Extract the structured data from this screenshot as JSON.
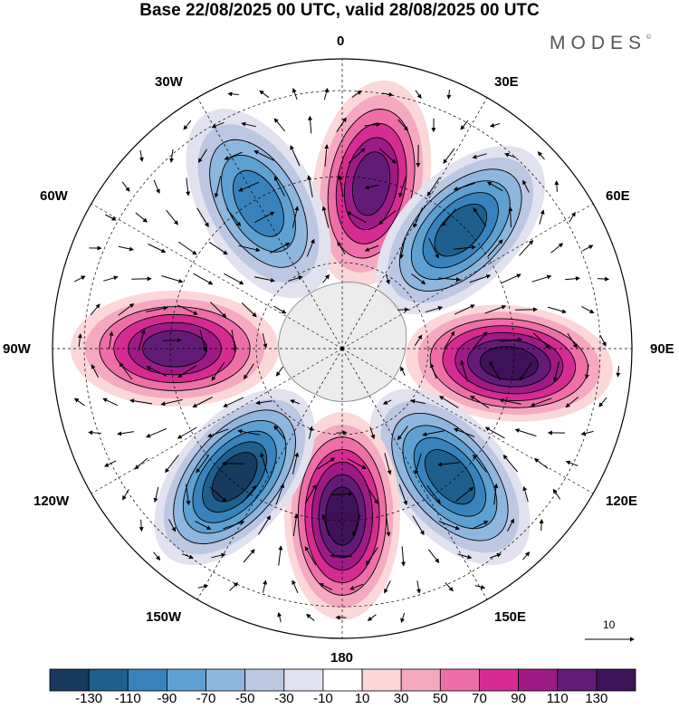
{
  "header": {
    "title": "Base 22/08/2025 00 UTC, valid 28/08/2025 00 UTC",
    "brand": "MODES",
    "brand_mark": "©"
  },
  "map": {
    "projection": "south-polar-stereographic",
    "longitude_labels": {
      "lon_0": "0",
      "lon_30e": "30E",
      "lon_60e": "60E",
      "lon_90e": "90E",
      "lon_120e": "120E",
      "lon_150e": "150E",
      "lon_180": "180",
      "lon_150w": "150W",
      "lon_120w": "120W",
      "lon_90w": "90W",
      "lon_60w": "60W",
      "lon_30w": "30W"
    },
    "anomaly_centers": [
      {
        "sign": "positive",
        "lon": 10,
        "peak": 110
      },
      {
        "sign": "negative",
        "lon": 45,
        "peak": -110
      },
      {
        "sign": "positive",
        "lon": 95,
        "peak": 130
      },
      {
        "sign": "negative",
        "lon": 140,
        "peak": -110
      },
      {
        "sign": "positive",
        "lon": 180,
        "peak": 130
      },
      {
        "sign": "negative",
        "lon": -140,
        "peak": -130
      },
      {
        "sign": "positive",
        "lon": -90,
        "peak": 110
      },
      {
        "sign": "negative",
        "lon": -30,
        "peak": -90
      }
    ],
    "reference_vector": "10"
  },
  "colorbar": {
    "levels": [
      "-130",
      "-110",
      "-90",
      "-70",
      "-50",
      "-30",
      "-10",
      "10",
      "30",
      "50",
      "70",
      "90",
      "110",
      "130"
    ],
    "colors": [
      "#173a5e",
      "#1f5f8d",
      "#3883bd",
      "#5fa0d2",
      "#8fb6dc",
      "#bcc7e1",
      "#e1e1ef",
      "#ffffff",
      "#fbd7da",
      "#f5a9c0",
      "#ee6fa8",
      "#d62b91",
      "#9e1a84",
      "#621c78",
      "#3e1258"
    ]
  }
}
